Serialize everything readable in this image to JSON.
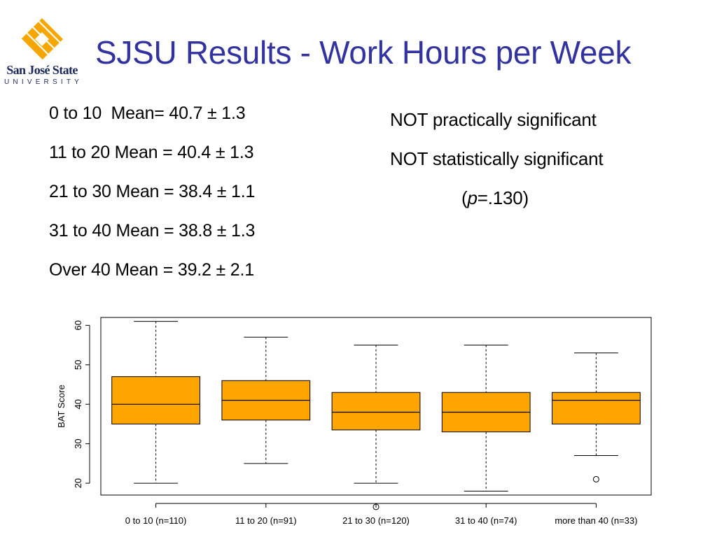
{
  "logo": {
    "name": "San José State",
    "sub": "UNIVERSITY",
    "colors": {
      "gold": "#f7a600",
      "navy": "#1b2a5c"
    }
  },
  "title": "SJSU Results - Work Hours per Week",
  "title_color": "#3333a0",
  "means": [
    "0 to 10  Mean= 40.7 ± 1.3",
    "11 to 20 Mean = 40.4 ± 1.3",
    "21 to 30 Mean = 38.4 ± 1.1",
    "31 to 40 Mean = 38.8 ± 1.3",
    "Over 40 Mean = 39.2 ± 2.1"
  ],
  "notes": {
    "practical": "NOT practically significant",
    "statistical": "NOT statistically significant",
    "p_open": "(",
    "p_symbol": "p",
    "p_value": "=.130)"
  },
  "chart_data": {
    "type": "boxplot",
    "ylabel": "BAT Score",
    "xlabel": "",
    "title": "",
    "ylim": [
      17,
      62
    ],
    "yticks": [
      "20",
      "30",
      "40",
      "50",
      "60"
    ],
    "box_color": "#ffa500",
    "grid": false,
    "categories": [
      "0 to 10 (n=110)",
      "11 to 20 (n=91)",
      "21 to 30 (n=120)",
      "31 to 40 (n=74)",
      "more than 40 (n=33)"
    ],
    "boxes": [
      {
        "whisker_low": 20,
        "q1": 35,
        "median": 40,
        "q3": 47,
        "whisker_high": 61,
        "outliers": []
      },
      {
        "whisker_low": 25,
        "q1": 36,
        "median": 41,
        "q3": 46,
        "whisker_high": 57,
        "outliers": []
      },
      {
        "whisker_low": 20,
        "q1": 33.5,
        "median": 38,
        "q3": 43,
        "whisker_high": 55,
        "outliers": [
          14
        ]
      },
      {
        "whisker_low": 18,
        "q1": 33,
        "median": 38,
        "q3": 43,
        "whisker_high": 55,
        "outliers": []
      },
      {
        "whisker_low": 27,
        "q1": 35,
        "median": 41,
        "q3": 43,
        "whisker_high": 53,
        "outliers": [
          21
        ]
      }
    ]
  }
}
